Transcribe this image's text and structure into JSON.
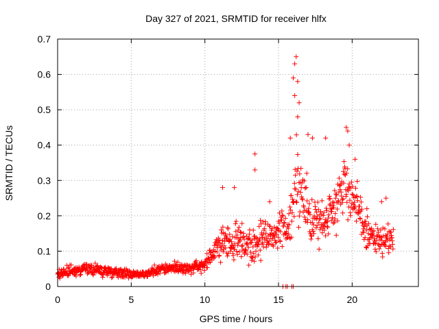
{
  "chart_data": {
    "type": "scatter",
    "title": "Day 327 of 2021, SRMTID for receiver hlfx",
    "xlabel": "GPS time / hours",
    "ylabel": "SRMTID / TECUs",
    "xlim": [
      0,
      24.5
    ],
    "ylim": [
      0,
      0.7
    ],
    "xticks": [
      0,
      5,
      10,
      15,
      20
    ],
    "yticks": [
      0,
      0.1,
      0.2,
      0.3,
      0.4,
      0.5,
      0.6,
      0.7
    ],
    "grid": true,
    "marker": "plus",
    "marker_color": "#ff0000",
    "series": [
      {
        "name": "SRMTID",
        "envelope": {
          "x": [
            0,
            1,
            2,
            3,
            4,
            5,
            6,
            7,
            8,
            9,
            10,
            11,
            12,
            13,
            14,
            15,
            15.8,
            16.2,
            17,
            18,
            19,
            19.5,
            20,
            21,
            22,
            22.8
          ],
          "y": [
            0.04,
            0.045,
            0.05,
            0.045,
            0.04,
            0.035,
            0.035,
            0.05,
            0.055,
            0.05,
            0.06,
            0.12,
            0.13,
            0.12,
            0.13,
            0.15,
            0.2,
            0.3,
            0.2,
            0.18,
            0.25,
            0.3,
            0.25,
            0.15,
            0.12,
            0.13
          ],
          "spread": [
            0.02,
            0.02,
            0.02,
            0.02,
            0.018,
            0.015,
            0.015,
            0.02,
            0.02,
            0.02,
            0.025,
            0.06,
            0.07,
            0.07,
            0.06,
            0.07,
            0.12,
            0.15,
            0.1,
            0.08,
            0.09,
            0.1,
            0.09,
            0.07,
            0.06,
            0.05
          ]
        },
        "peaks": [
          {
            "x": 11.2,
            "y": 0.28
          },
          {
            "x": 12.0,
            "y": 0.28
          },
          {
            "x": 13.4,
            "y": 0.375
          },
          {
            "x": 13.4,
            "y": 0.33
          },
          {
            "x": 14.4,
            "y": 0.24
          },
          {
            "x": 15.8,
            "y": 0.42
          },
          {
            "x": 16.0,
            "y": 0.59
          },
          {
            "x": 16.1,
            "y": 0.63
          },
          {
            "x": 16.2,
            "y": 0.65
          },
          {
            "x": 16.3,
            "y": 0.58
          },
          {
            "x": 16.4,
            "y": 0.52
          },
          {
            "x": 16.1,
            "y": 0.54
          },
          {
            "x": 16.3,
            "y": 0.48
          },
          {
            "x": 17.0,
            "y": 0.43
          },
          {
            "x": 17.3,
            "y": 0.42
          },
          {
            "x": 18.2,
            "y": 0.42
          },
          {
            "x": 19.6,
            "y": 0.45
          },
          {
            "x": 19.7,
            "y": 0.44
          },
          {
            "x": 19.8,
            "y": 0.4
          },
          {
            "x": 20.2,
            "y": 0.36
          },
          {
            "x": 22.3,
            "y": 0.25
          },
          {
            "x": 22.0,
            "y": 0.24
          },
          {
            "x": 21.0,
            "y": 0.22
          }
        ],
        "zeros": [
          {
            "x": 15.3,
            "y": 0
          },
          {
            "x": 15.5,
            "y": 0
          },
          {
            "x": 15.6,
            "y": 0
          },
          {
            "x": 15.9,
            "y": 0
          },
          {
            "x": 16.0,
            "y": 0
          }
        ]
      }
    ]
  }
}
